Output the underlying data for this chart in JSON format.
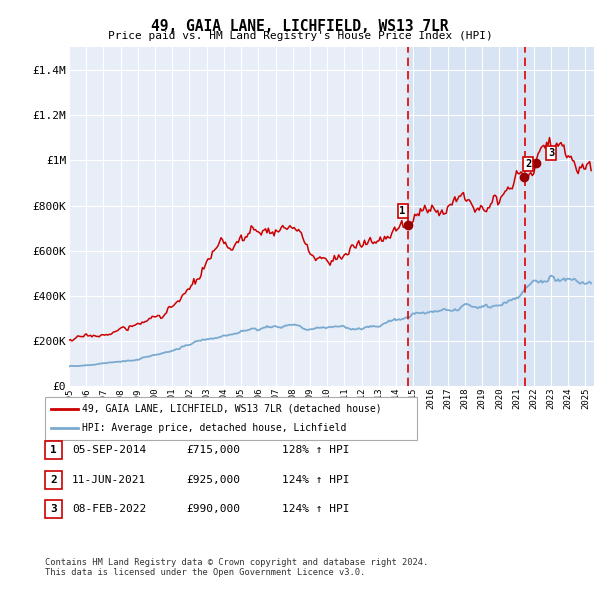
{
  "title": "49, GAIA LANE, LICHFIELD, WS13 7LR",
  "subtitle": "Price paid vs. HM Land Registry's House Price Index (HPI)",
  "ylim": [
    0,
    1500000
  ],
  "yticks": [
    0,
    200000,
    400000,
    600000,
    800000,
    1000000,
    1200000,
    1400000
  ],
  "ytick_labels": [
    "£0",
    "£200K",
    "£400K",
    "£600K",
    "£800K",
    "£1M",
    "£1.2M",
    "£1.4M"
  ],
  "background_color": "#ffffff",
  "plot_bg_color": "#e8eef8",
  "grid_color": "#ffffff",
  "red_line_color": "#cc0000",
  "blue_line_color": "#7aaad0",
  "shade_color": "#d8e4f4",
  "dashed_color": "#dd0000",
  "marker_color": "#990000",
  "transactions": [
    {
      "date_num": 2014.68,
      "price": 715000,
      "label": "1"
    },
    {
      "date_num": 2021.44,
      "price": 925000,
      "label": "2"
    },
    {
      "date_num": 2022.11,
      "price": 990000,
      "label": "3"
    }
  ],
  "vline_dates": [
    2014.68,
    2021.5
  ],
  "table_rows": [
    [
      "1",
      "05-SEP-2014",
      "£715,000",
      "128% ↑ HPI"
    ],
    [
      "2",
      "11-JUN-2021",
      "£925,000",
      "124% ↑ HPI"
    ],
    [
      "3",
      "08-FEB-2022",
      "£990,000",
      "124% ↑ HPI"
    ]
  ],
  "legend_entries": [
    "49, GAIA LANE, LICHFIELD, WS13 7LR (detached house)",
    "HPI: Average price, detached house, Lichfield"
  ],
  "footer": "Contains HM Land Registry data © Crown copyright and database right 2024.\nThis data is licensed under the Open Government Licence v3.0.",
  "xmin": 1995.0,
  "xmax": 2025.5
}
